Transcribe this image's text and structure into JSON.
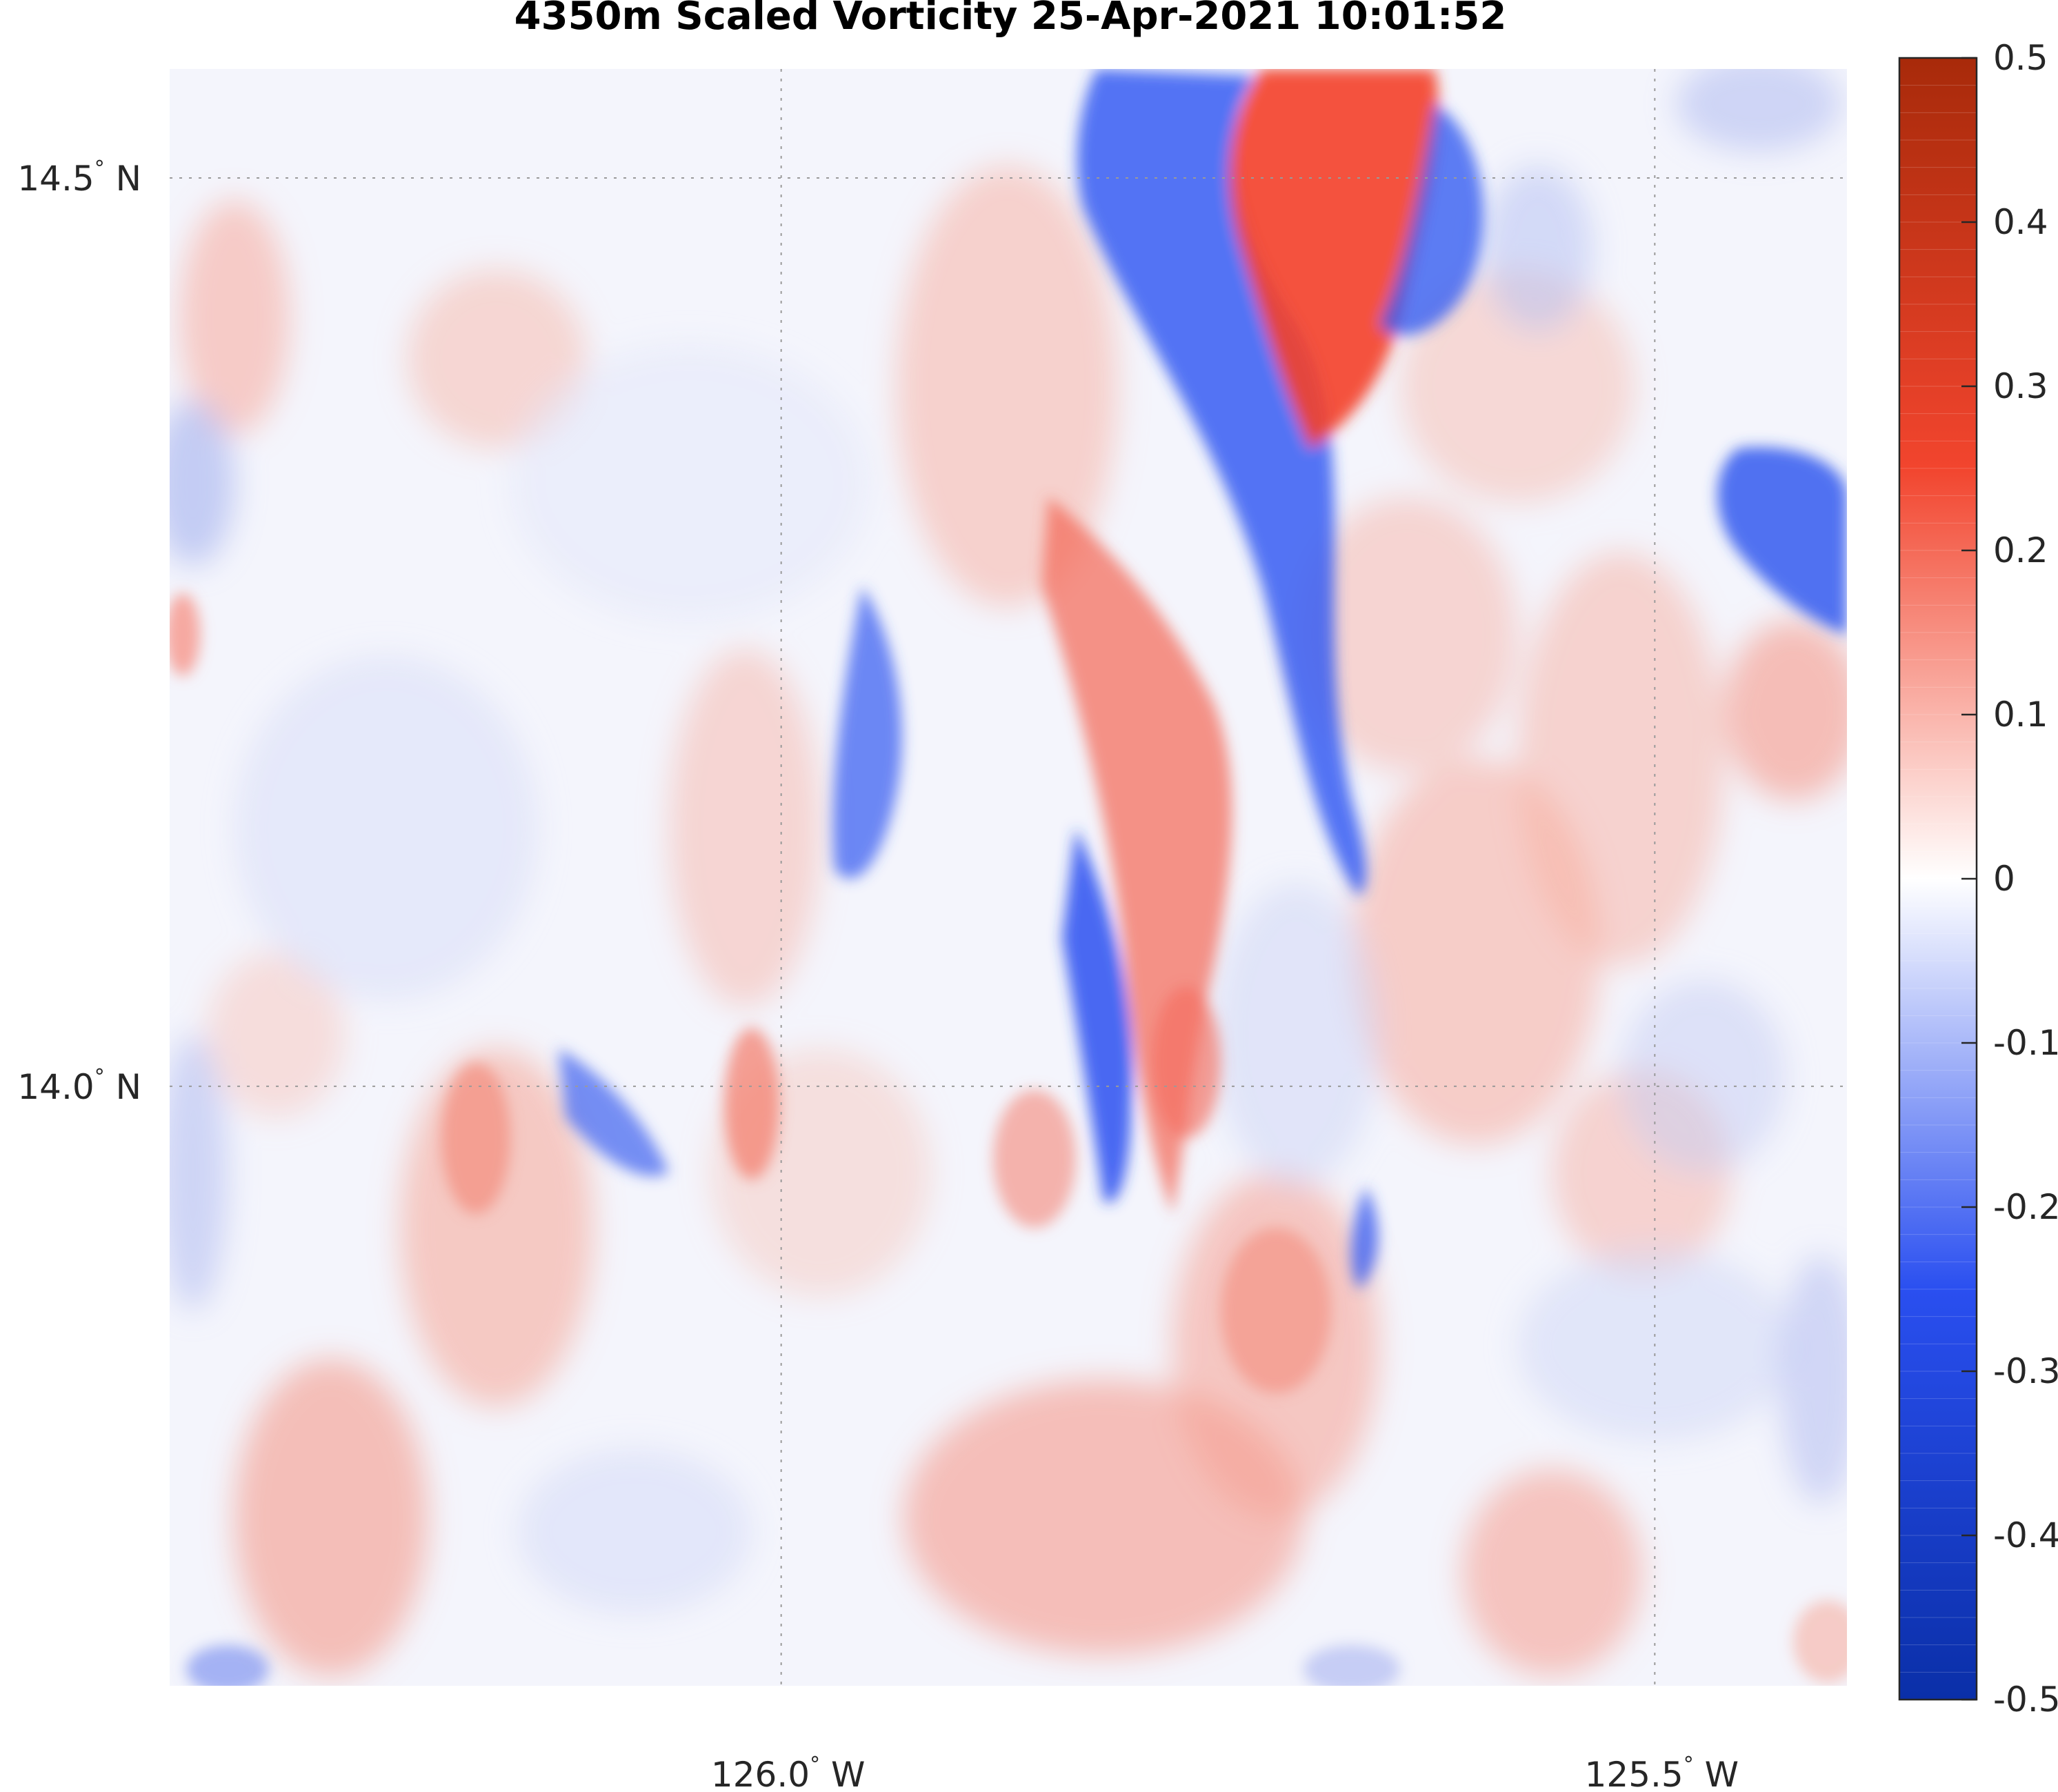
{
  "chart_data": {
    "type": "heatmap",
    "title": "4350m Scaled Vorticity  25-Apr-2021 10:01:52",
    "map_grid": true,
    "lat_ticks": [
      {
        "value": 14.5,
        "label": "14.5",
        "suffix": "N"
      },
      {
        "value": 14.0,
        "label": "14.0",
        "suffix": "N"
      }
    ],
    "lon_ticks": [
      {
        "value": -126.0,
        "label": "126.0",
        "suffix": "W"
      },
      {
        "value": -125.5,
        "label": "125.5",
        "suffix": "W"
      }
    ],
    "lat_range": [
      13.67,
      14.56
    ],
    "lon_range": [
      -126.35,
      -125.39
    ],
    "colorbar": {
      "range": [
        -0.5,
        0.5
      ],
      "ticks": [
        "0.5",
        "0.4",
        "0.3",
        "0.2",
        "0.1",
        "0",
        "-0.1",
        "-0.2",
        "-0.3",
        "-0.4",
        "-0.5"
      ],
      "tick_values": [
        0.5,
        0.4,
        0.3,
        0.2,
        0.1,
        0,
        -0.1,
        -0.2,
        -0.3,
        -0.4,
        -0.5
      ],
      "colormap": [
        "#0a2fa8",
        "#2a4ff0",
        "#ffffff",
        "#f2452e",
        "#a82a0a"
      ]
    },
    "field_features": [
      {
        "kind": "positive",
        "lon": -125.7,
        "lat": 14.48,
        "value": 0.3
      },
      {
        "kind": "positive",
        "lon": -125.76,
        "lat": 14.16,
        "value": 0.14
      },
      {
        "kind": "positive",
        "lon": -125.76,
        "lat": 14.03,
        "value": 0.19
      },
      {
        "kind": "positive",
        "lon": -125.78,
        "lat": 13.8,
        "value": 0.13
      },
      {
        "kind": "positive",
        "lon": -125.85,
        "lat": 13.78,
        "value": 0.12
      },
      {
        "kind": "positive",
        "lon": -125.52,
        "lat": 14.18,
        "value": 0.1
      },
      {
        "kind": "positive",
        "lon": -125.57,
        "lat": 14.08,
        "value": 0.1
      },
      {
        "kind": "positive",
        "lon": -125.42,
        "lat": 14.23,
        "value": 0.1
      },
      {
        "kind": "negative",
        "lon": -125.82,
        "lat": 14.48,
        "value": -0.3
      },
      {
        "kind": "negative",
        "lon": -125.74,
        "lat": 14.2,
        "value": -0.2
      },
      {
        "kind": "negative",
        "lon": -125.83,
        "lat": 14.03,
        "value": -0.3
      },
      {
        "kind": "negative",
        "lon": -125.92,
        "lat": 14.2,
        "value": -0.22
      },
      {
        "kind": "negative",
        "lon": -125.4,
        "lat": 14.33,
        "value": -0.28
      }
    ]
  }
}
